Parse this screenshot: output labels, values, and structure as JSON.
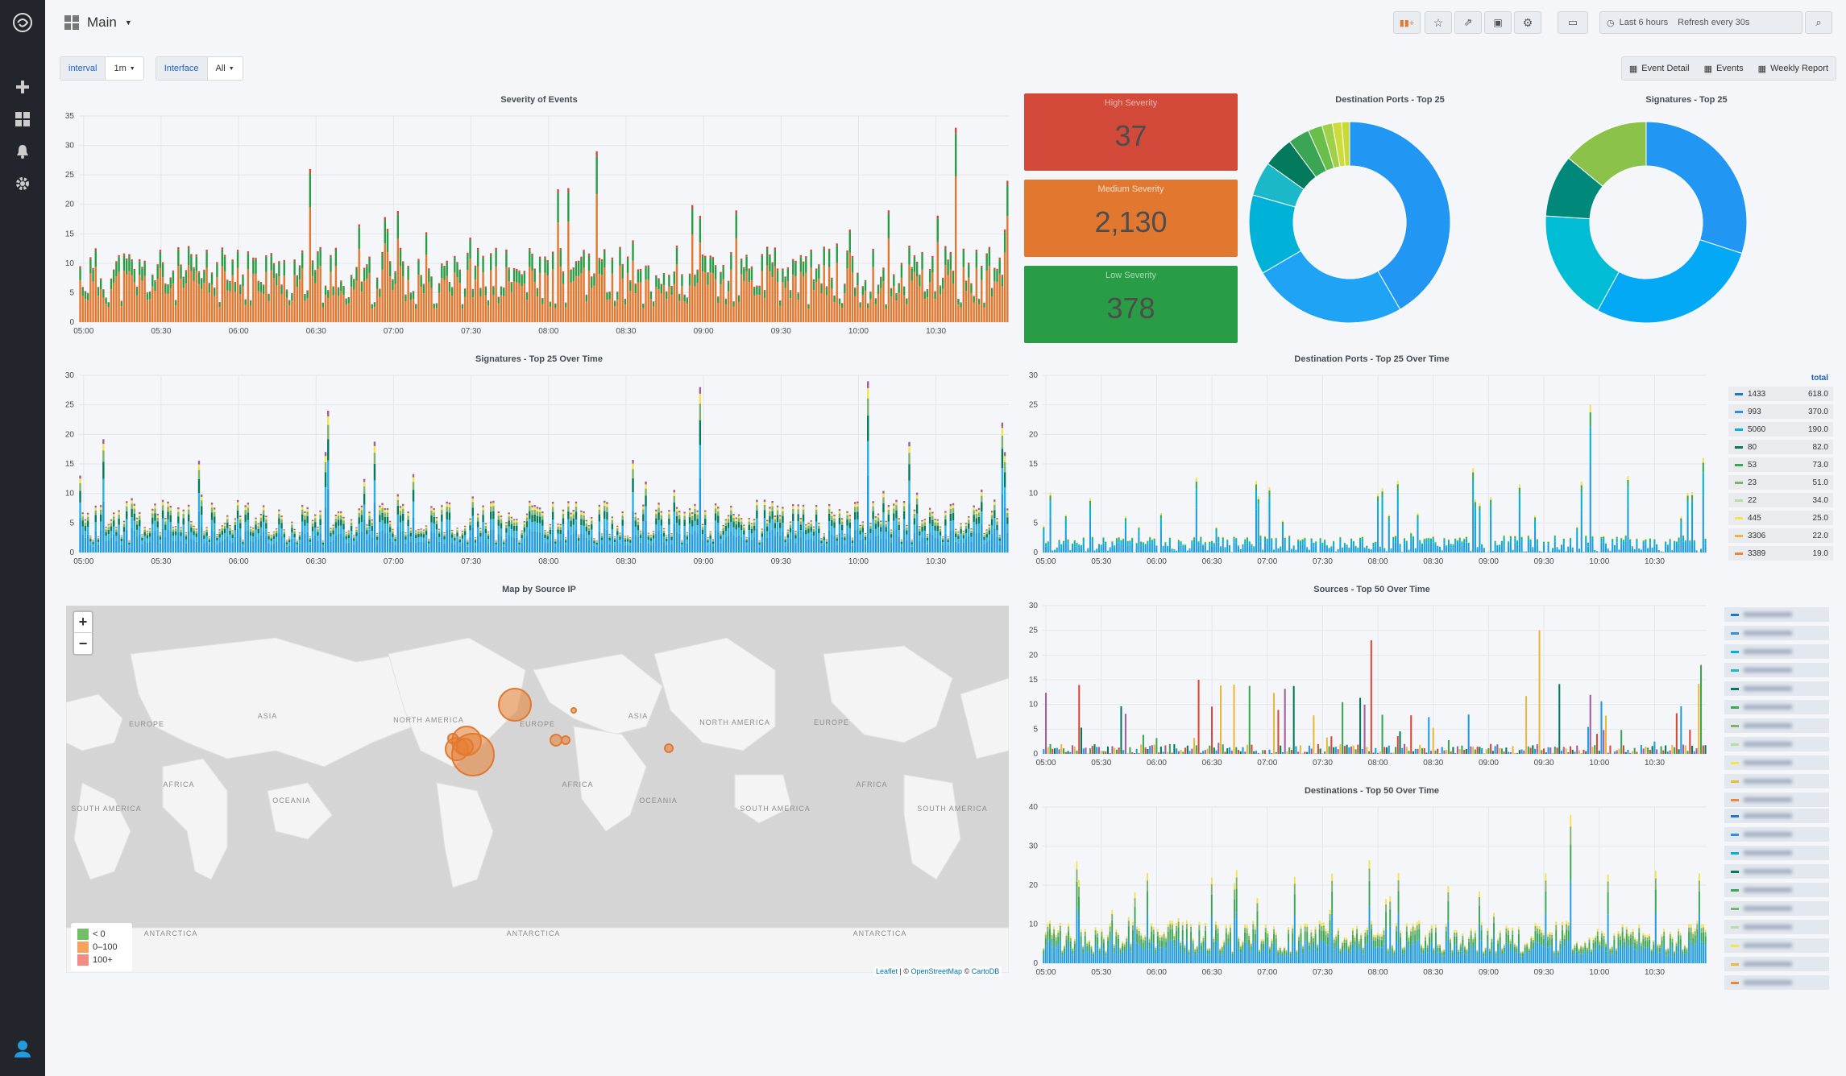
{
  "sidebar": {
    "items": [
      {
        "icon": "logo-icon"
      },
      {
        "icon": "plus-icon"
      },
      {
        "icon": "dashboards-icon"
      },
      {
        "icon": "bell-icon"
      },
      {
        "icon": "gear-icon"
      },
      {
        "icon": "user-icon"
      }
    ]
  },
  "header": {
    "title": "Main",
    "time_range": "Last 6 hours",
    "refresh": "Refresh every 30s"
  },
  "variables": [
    {
      "label": "interval",
      "value": "1m"
    },
    {
      "label": "Interface",
      "value": "All"
    }
  ],
  "links": [
    "Event Detail",
    "Events",
    "Weekly Report"
  ],
  "colors": {
    "high": "#d44a3a",
    "medium": "#e27830",
    "low": "#299c46",
    "accent": "#1f60c4"
  },
  "stats": [
    {
      "title": "High Severity",
      "value": "37"
    },
    {
      "title": "Medium Severity",
      "value": "2,130"
    },
    {
      "title": "Low Severity",
      "value": "378"
    }
  ],
  "panels": {
    "severity": "Severity of Events",
    "dest_ports_pie": "Destination Ports - Top 25",
    "signatures_pie": "Signatures - Top 25",
    "signatures_time": "Signatures - Top 25 Over Time",
    "dest_ports_time": "Destination Ports - Top 25 Over Time",
    "map": "Map by Source IP",
    "sources_time": "Sources - Top 50 Over Time",
    "destinations_time": "Destinations - Top 50 Over Time"
  },
  "time_ticks": [
    "05:00",
    "05:30",
    "06:00",
    "06:30",
    "07:00",
    "07:30",
    "08:00",
    "08:30",
    "09:00",
    "09:30",
    "10:00",
    "10:30"
  ],
  "dest_ports_legend": {
    "header": "total",
    "rows": [
      {
        "name": "1433",
        "value": "618.0",
        "color": "#1f78c1"
      },
      {
        "name": "993",
        "value": "370.0",
        "color": "#2f8de4"
      },
      {
        "name": "5060",
        "value": "190.0",
        "color": "#00b2d8"
      },
      {
        "name": "80",
        "value": "82.0",
        "color": "#037a5b"
      },
      {
        "name": "53",
        "value": "73.0",
        "color": "#3aa655"
      },
      {
        "name": "23",
        "value": "51.0",
        "color": "#7eb26d"
      },
      {
        "name": "22",
        "value": "34.0",
        "color": "#b7dbab"
      },
      {
        "name": "445",
        "value": "25.0",
        "color": "#f2e34f"
      },
      {
        "name": "3306",
        "value": "22.0",
        "color": "#eab839"
      },
      {
        "name": "3389",
        "value": "19.0",
        "color": "#ef843c"
      }
    ]
  },
  "map": {
    "continents": [
      "EUROPE",
      "ASIA",
      "NORTH AMERICA",
      "EUROPE",
      "ASIA",
      "NORTH AMERICA",
      "EUROPE",
      "AFRICA",
      "OCEANIA",
      "SOUTH AMERICA",
      "AFRICA",
      "OCEANIA",
      "SOUTH AMERICA",
      "AFRICA",
      "SOUTH AMERICA",
      "ANTARCTICA",
      "ANTARCTICA",
      "ANTARCTICA"
    ],
    "legend": [
      {
        "label": "< 0",
        "color": "#73bf69"
      },
      {
        "label": "0–100",
        "color": "#f4a460"
      },
      {
        "label": "100+",
        "color": "#f28b82"
      }
    ],
    "attribution": {
      "lib": "Leaflet",
      "sep": " | © ",
      "osm": "OpenStreetMap",
      "sep2": " © ",
      "carto": "CartoDB"
    }
  },
  "chart_data": [
    {
      "type": "bar",
      "title": "Severity of Events",
      "ylim": [
        0,
        35
      ],
      "yticks": [
        0,
        5,
        10,
        15,
        20,
        25,
        30,
        35
      ],
      "x": [
        "05:00",
        "05:30",
        "06:00",
        "06:30",
        "07:00",
        "07:30",
        "08:00",
        "08:30",
        "09:00",
        "09:30",
        "10:00",
        "10:30"
      ],
      "series": [
        {
          "name": "medium",
          "color": "#e27830"
        },
        {
          "name": "low",
          "color": "#299c46"
        },
        {
          "name": "high",
          "color": "#d44a3a"
        }
      ]
    },
    {
      "type": "pie",
      "title": "Destination Ports - Top 25",
      "values": [
        618,
        370,
        190,
        82,
        73,
        51,
        34,
        25,
        22,
        19
      ],
      "colors": [
        "#2196f3",
        "#1fa3f5",
        "#00b2d8",
        "#1bb8c9",
        "#037a5b",
        "#3aa655",
        "#6abf4b",
        "#9ed04a",
        "#cddc39",
        "#c9d936"
      ]
    },
    {
      "type": "pie",
      "title": "Signatures - Top 25",
      "values": [
        30,
        28,
        18,
        10,
        14
      ],
      "colors": [
        "#2196f3",
        "#03a9f4",
        "#00bcd4",
        "#00897b",
        "#8bc34a"
      ]
    },
    {
      "type": "bar",
      "title": "Signatures - Top 25 Over Time",
      "ylim": [
        0,
        30
      ],
      "yticks": [
        0,
        5,
        10,
        15,
        20,
        25,
        30
      ]
    },
    {
      "type": "bar",
      "title": "Destination Ports - Top 25 Over Time",
      "ylim": [
        0,
        30
      ],
      "yticks": [
        0,
        5,
        10,
        15,
        20,
        25,
        30
      ]
    },
    {
      "type": "bar",
      "title": "Sources - Top 50 Over Time",
      "ylim": [
        0,
        30
      ],
      "yticks": [
        0,
        5,
        10,
        15,
        20,
        25,
        30
      ]
    },
    {
      "type": "bar",
      "title": "Destinations - Top 50 Over Time",
      "ylim": [
        0,
        40
      ],
      "yticks": [
        0,
        10,
        20,
        30,
        40
      ]
    }
  ]
}
